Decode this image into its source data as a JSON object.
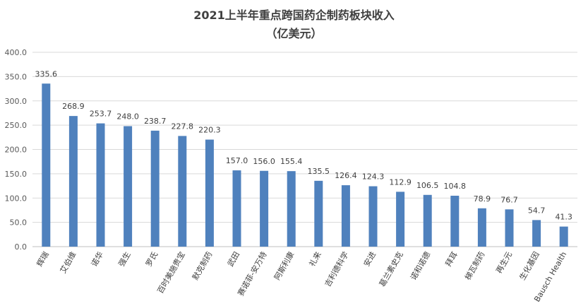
{
  "chart_data": {
    "type": "bar",
    "title": "2021上半年重点跨国药企制药板块收入",
    "subtitle": "（亿美元）",
    "categories": [
      "辉瑞",
      "艾伯维",
      "诺华",
      "强生",
      "罗氏",
      "百时美施贵宝",
      "默克制药",
      "武田",
      "赛诺菲-安万特",
      "阿斯利康",
      "礼来",
      "吉利德科学",
      "安进",
      "葛兰素史克",
      "诺和诺德",
      "拜耳",
      "梯瓦制药",
      "再生元",
      "生化基因",
      "Bausch Health"
    ],
    "values": [
      335.6,
      268.9,
      253.7,
      248.0,
      238.7,
      227.8,
      220.3,
      157.0,
      156.0,
      155.4,
      135.5,
      126.4,
      124.3,
      112.9,
      106.5,
      104.8,
      78.9,
      76.7,
      54.7,
      41.3
    ],
    "value_labels": [
      "335.6",
      "268.9",
      "253.7",
      "248.0",
      "238.7",
      "227.8",
      "220.3",
      "157.0",
      "156.0",
      "155.4",
      "135.5",
      "126.4",
      "124.3",
      "112.9",
      "106.5",
      "104.8",
      "78.9",
      "76.7",
      "54.7",
      "41.3"
    ],
    "y_ticks": [
      "0.0",
      "50.0",
      "100.0",
      "150.0",
      "200.0",
      "250.0",
      "300.0",
      "350.0",
      "400.0"
    ],
    "ylim": [
      0,
      400
    ],
    "grid": true,
    "legend": "none",
    "bar_color": "#4f81bd"
  }
}
